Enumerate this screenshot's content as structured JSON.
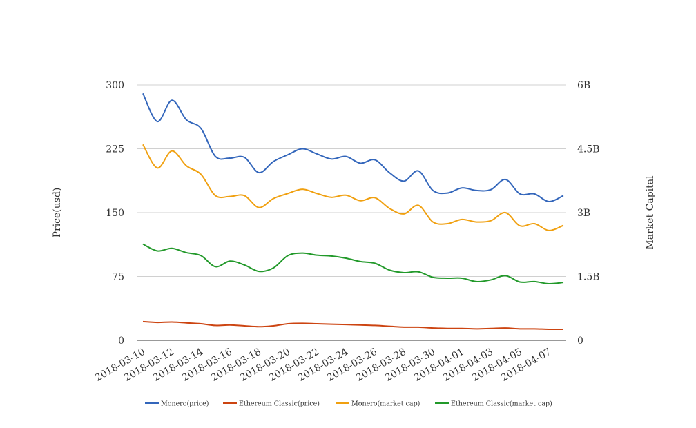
{
  "chart_data": {
    "type": "line",
    "title": "",
    "ylabel_left": "Price(usd)",
    "ylabel_right": "Market Capital",
    "xlabel": "",
    "grid": true,
    "legend_position": "bottom",
    "y_left": {
      "range": [
        0,
        300
      ],
      "ticks": [
        0,
        75,
        150,
        225,
        300
      ],
      "tick_labels": [
        "0",
        "75",
        "150",
        "225",
        "300"
      ]
    },
    "y_right": {
      "range": [
        0,
        6000000000
      ],
      "ticks": [
        0,
        1500000000,
        3000000000,
        4500000000,
        6000000000
      ],
      "tick_labels": [
        "0",
        "1.5B",
        "3B",
        "4.5B",
        "6B"
      ]
    },
    "x_tick_labels": [
      "2018-03-10",
      "2018-03-12",
      "2018-03-14",
      "2018-03-16",
      "2018-03-18",
      "2018-03-20",
      "2018-03-22",
      "2018-03-24",
      "2018-03-26",
      "2018-03-28",
      "2018-03-30",
      "2018-04-01",
      "2018-04-03",
      "2018-04-05",
      "2018-04-07"
    ],
    "x": [
      "2018-03-10",
      "2018-03-11",
      "2018-03-12",
      "2018-03-13",
      "2018-03-14",
      "2018-03-15",
      "2018-03-16",
      "2018-03-17",
      "2018-03-18",
      "2018-03-19",
      "2018-03-20",
      "2018-03-21",
      "2018-03-22",
      "2018-03-23",
      "2018-03-24",
      "2018-03-25",
      "2018-03-26",
      "2018-03-27",
      "2018-03-28",
      "2018-03-29",
      "2018-03-30",
      "2018-03-31",
      "2018-04-01",
      "2018-04-02",
      "2018-04-03",
      "2018-04-04",
      "2018-04-05",
      "2018-04-06",
      "2018-04-07",
      "2018-04-08"
    ],
    "series": [
      {
        "name": "Monero(price)",
        "axis": "left",
        "color": "#3366bb",
        "values": [
          290,
          257,
          282,
          259,
          249,
          216,
          214,
          215,
          197,
          210,
          218,
          225,
          219,
          213,
          216,
          208,
          212,
          197,
          187,
          199,
          176,
          173,
          179,
          176,
          177,
          189,
          172,
          172,
          163,
          170
        ]
      },
      {
        "name": "Ethereum Classic(price)",
        "axis": "left",
        "color": "#cc4411",
        "values": [
          22,
          21,
          21.5,
          20.5,
          19.5,
          17.5,
          18,
          17,
          16,
          17,
          19.5,
          20,
          19.5,
          19,
          18.5,
          18,
          17.5,
          16.5,
          15.5,
          15.5,
          14.5,
          14,
          14,
          13.5,
          14,
          14.5,
          13.5,
          13.5,
          13,
          13
        ]
      },
      {
        "name": "Monero(market cap)",
        "axis": "right",
        "color": "#f0a010",
        "values": [
          4600000000,
          4050000000,
          4450000000,
          4100000000,
          3900000000,
          3400000000,
          3380000000,
          3400000000,
          3120000000,
          3330000000,
          3450000000,
          3550000000,
          3450000000,
          3360000000,
          3410000000,
          3280000000,
          3350000000,
          3100000000,
          2970000000,
          3170000000,
          2780000000,
          2740000000,
          2840000000,
          2780000000,
          2810000000,
          3000000000,
          2690000000,
          2740000000,
          2580000000,
          2700000000
        ]
      },
      {
        "name": "Ethereum Classic(market cap)",
        "axis": "right",
        "color": "#22992a",
        "values": [
          2260000000,
          2100000000,
          2160000000,
          2060000000,
          1990000000,
          1730000000,
          1860000000,
          1770000000,
          1620000000,
          1700000000,
          1990000000,
          2050000000,
          2000000000,
          1980000000,
          1930000000,
          1850000000,
          1810000000,
          1650000000,
          1590000000,
          1610000000,
          1480000000,
          1460000000,
          1460000000,
          1380000000,
          1420000000,
          1520000000,
          1370000000,
          1380000000,
          1330000000,
          1360000000
        ]
      }
    ]
  }
}
